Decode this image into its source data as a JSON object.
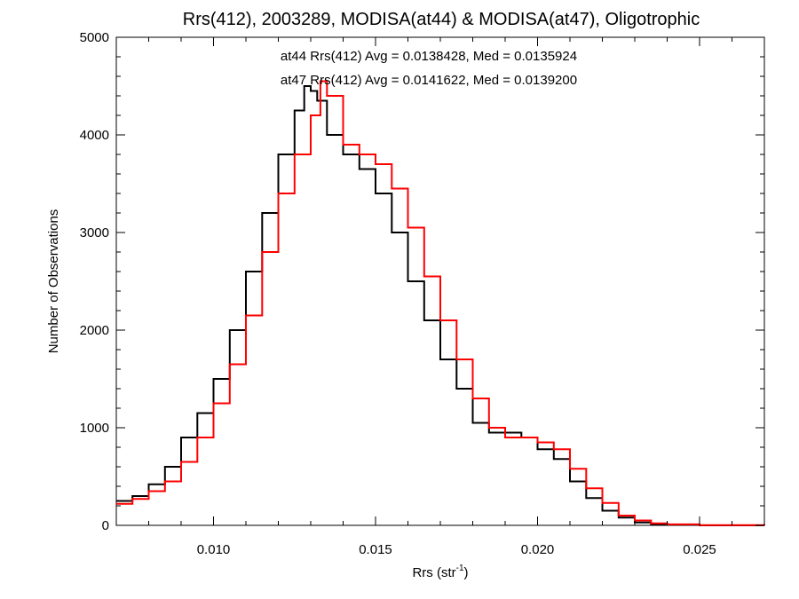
{
  "chart_data": {
    "type": "line",
    "step": true,
    "title": "Rrs(412), 2003289, MODISA(at44) & MODISA(at47), Oligotrophic",
    "xlabel_main": "Rrs (str",
    "xlabel_sup": "-1",
    "xlabel_tail": ")",
    "ylabel": "Number of Observations",
    "xlim": [
      0.007,
      0.027
    ],
    "ylim": [
      0,
      5000
    ],
    "xticks": [
      0.01,
      0.015,
      0.02,
      0.025
    ],
    "xtick_labels": [
      "0.010",
      "0.015",
      "0.020",
      "0.025"
    ],
    "yticks": [
      0,
      1000,
      2000,
      3000,
      4000,
      5000
    ],
    "ytick_labels": [
      "0",
      "1000",
      "2000",
      "3000",
      "4000",
      "5000"
    ],
    "grid": false,
    "annotations": [
      {
        "text": "at44 Rrs(412) Avg = 0.0138428, Med = 0.0135924",
        "color": "#000000"
      },
      {
        "text": "at47 Rrs(412) Avg = 0.0141622, Med = 0.0139200",
        "color": "#ff0000"
      }
    ],
    "series": [
      {
        "color": "#000000",
        "points": [
          [
            0.007,
            250
          ],
          [
            0.0075,
            300
          ],
          [
            0.008,
            420
          ],
          [
            0.0085,
            600
          ],
          [
            0.009,
            900
          ],
          [
            0.0095,
            1150
          ],
          [
            0.01,
            1500
          ],
          [
            0.0105,
            2000
          ],
          [
            0.011,
            2600
          ],
          [
            0.0115,
            3200
          ],
          [
            0.012,
            3800
          ],
          [
            0.0125,
            4250
          ],
          [
            0.0128,
            4500
          ],
          [
            0.013,
            4450
          ],
          [
            0.0132,
            4350
          ],
          [
            0.0135,
            4000
          ],
          [
            0.014,
            3800
          ],
          [
            0.0145,
            3650
          ],
          [
            0.015,
            3400
          ],
          [
            0.0155,
            3000
          ],
          [
            0.016,
            2500
          ],
          [
            0.0165,
            2100
          ],
          [
            0.017,
            1700
          ],
          [
            0.0175,
            1400
          ],
          [
            0.018,
            1050
          ],
          [
            0.0185,
            950
          ],
          [
            0.019,
            950
          ],
          [
            0.0195,
            900
          ],
          [
            0.02,
            780
          ],
          [
            0.0205,
            680
          ],
          [
            0.021,
            450
          ],
          [
            0.0215,
            280
          ],
          [
            0.022,
            150
          ],
          [
            0.0225,
            80
          ],
          [
            0.023,
            30
          ],
          [
            0.0235,
            10
          ],
          [
            0.024,
            5
          ],
          [
            0.025,
            0
          ],
          [
            0.027,
            0
          ]
        ]
      },
      {
        "color": "#ff0000",
        "points": [
          [
            0.007,
            220
          ],
          [
            0.0075,
            270
          ],
          [
            0.008,
            350
          ],
          [
            0.0085,
            450
          ],
          [
            0.009,
            650
          ],
          [
            0.0095,
            900
          ],
          [
            0.01,
            1250
          ],
          [
            0.0105,
            1650
          ],
          [
            0.011,
            2150
          ],
          [
            0.0115,
            2800
          ],
          [
            0.012,
            3400
          ],
          [
            0.0125,
            3800
          ],
          [
            0.013,
            4200
          ],
          [
            0.0133,
            4550
          ],
          [
            0.0135,
            4400
          ],
          [
            0.014,
            3900
          ],
          [
            0.0145,
            3800
          ],
          [
            0.015,
            3700
          ],
          [
            0.0155,
            3450
          ],
          [
            0.016,
            3050
          ],
          [
            0.0165,
            2550
          ],
          [
            0.017,
            2100
          ],
          [
            0.0175,
            1700
          ],
          [
            0.018,
            1300
          ],
          [
            0.0185,
            1000
          ],
          [
            0.019,
            900
          ],
          [
            0.0195,
            900
          ],
          [
            0.02,
            850
          ],
          [
            0.0205,
            780
          ],
          [
            0.021,
            580
          ],
          [
            0.0215,
            380
          ],
          [
            0.022,
            230
          ],
          [
            0.0225,
            100
          ],
          [
            0.023,
            50
          ],
          [
            0.0235,
            20
          ],
          [
            0.024,
            10
          ],
          [
            0.025,
            3
          ],
          [
            0.027,
            0
          ]
        ]
      }
    ]
  }
}
